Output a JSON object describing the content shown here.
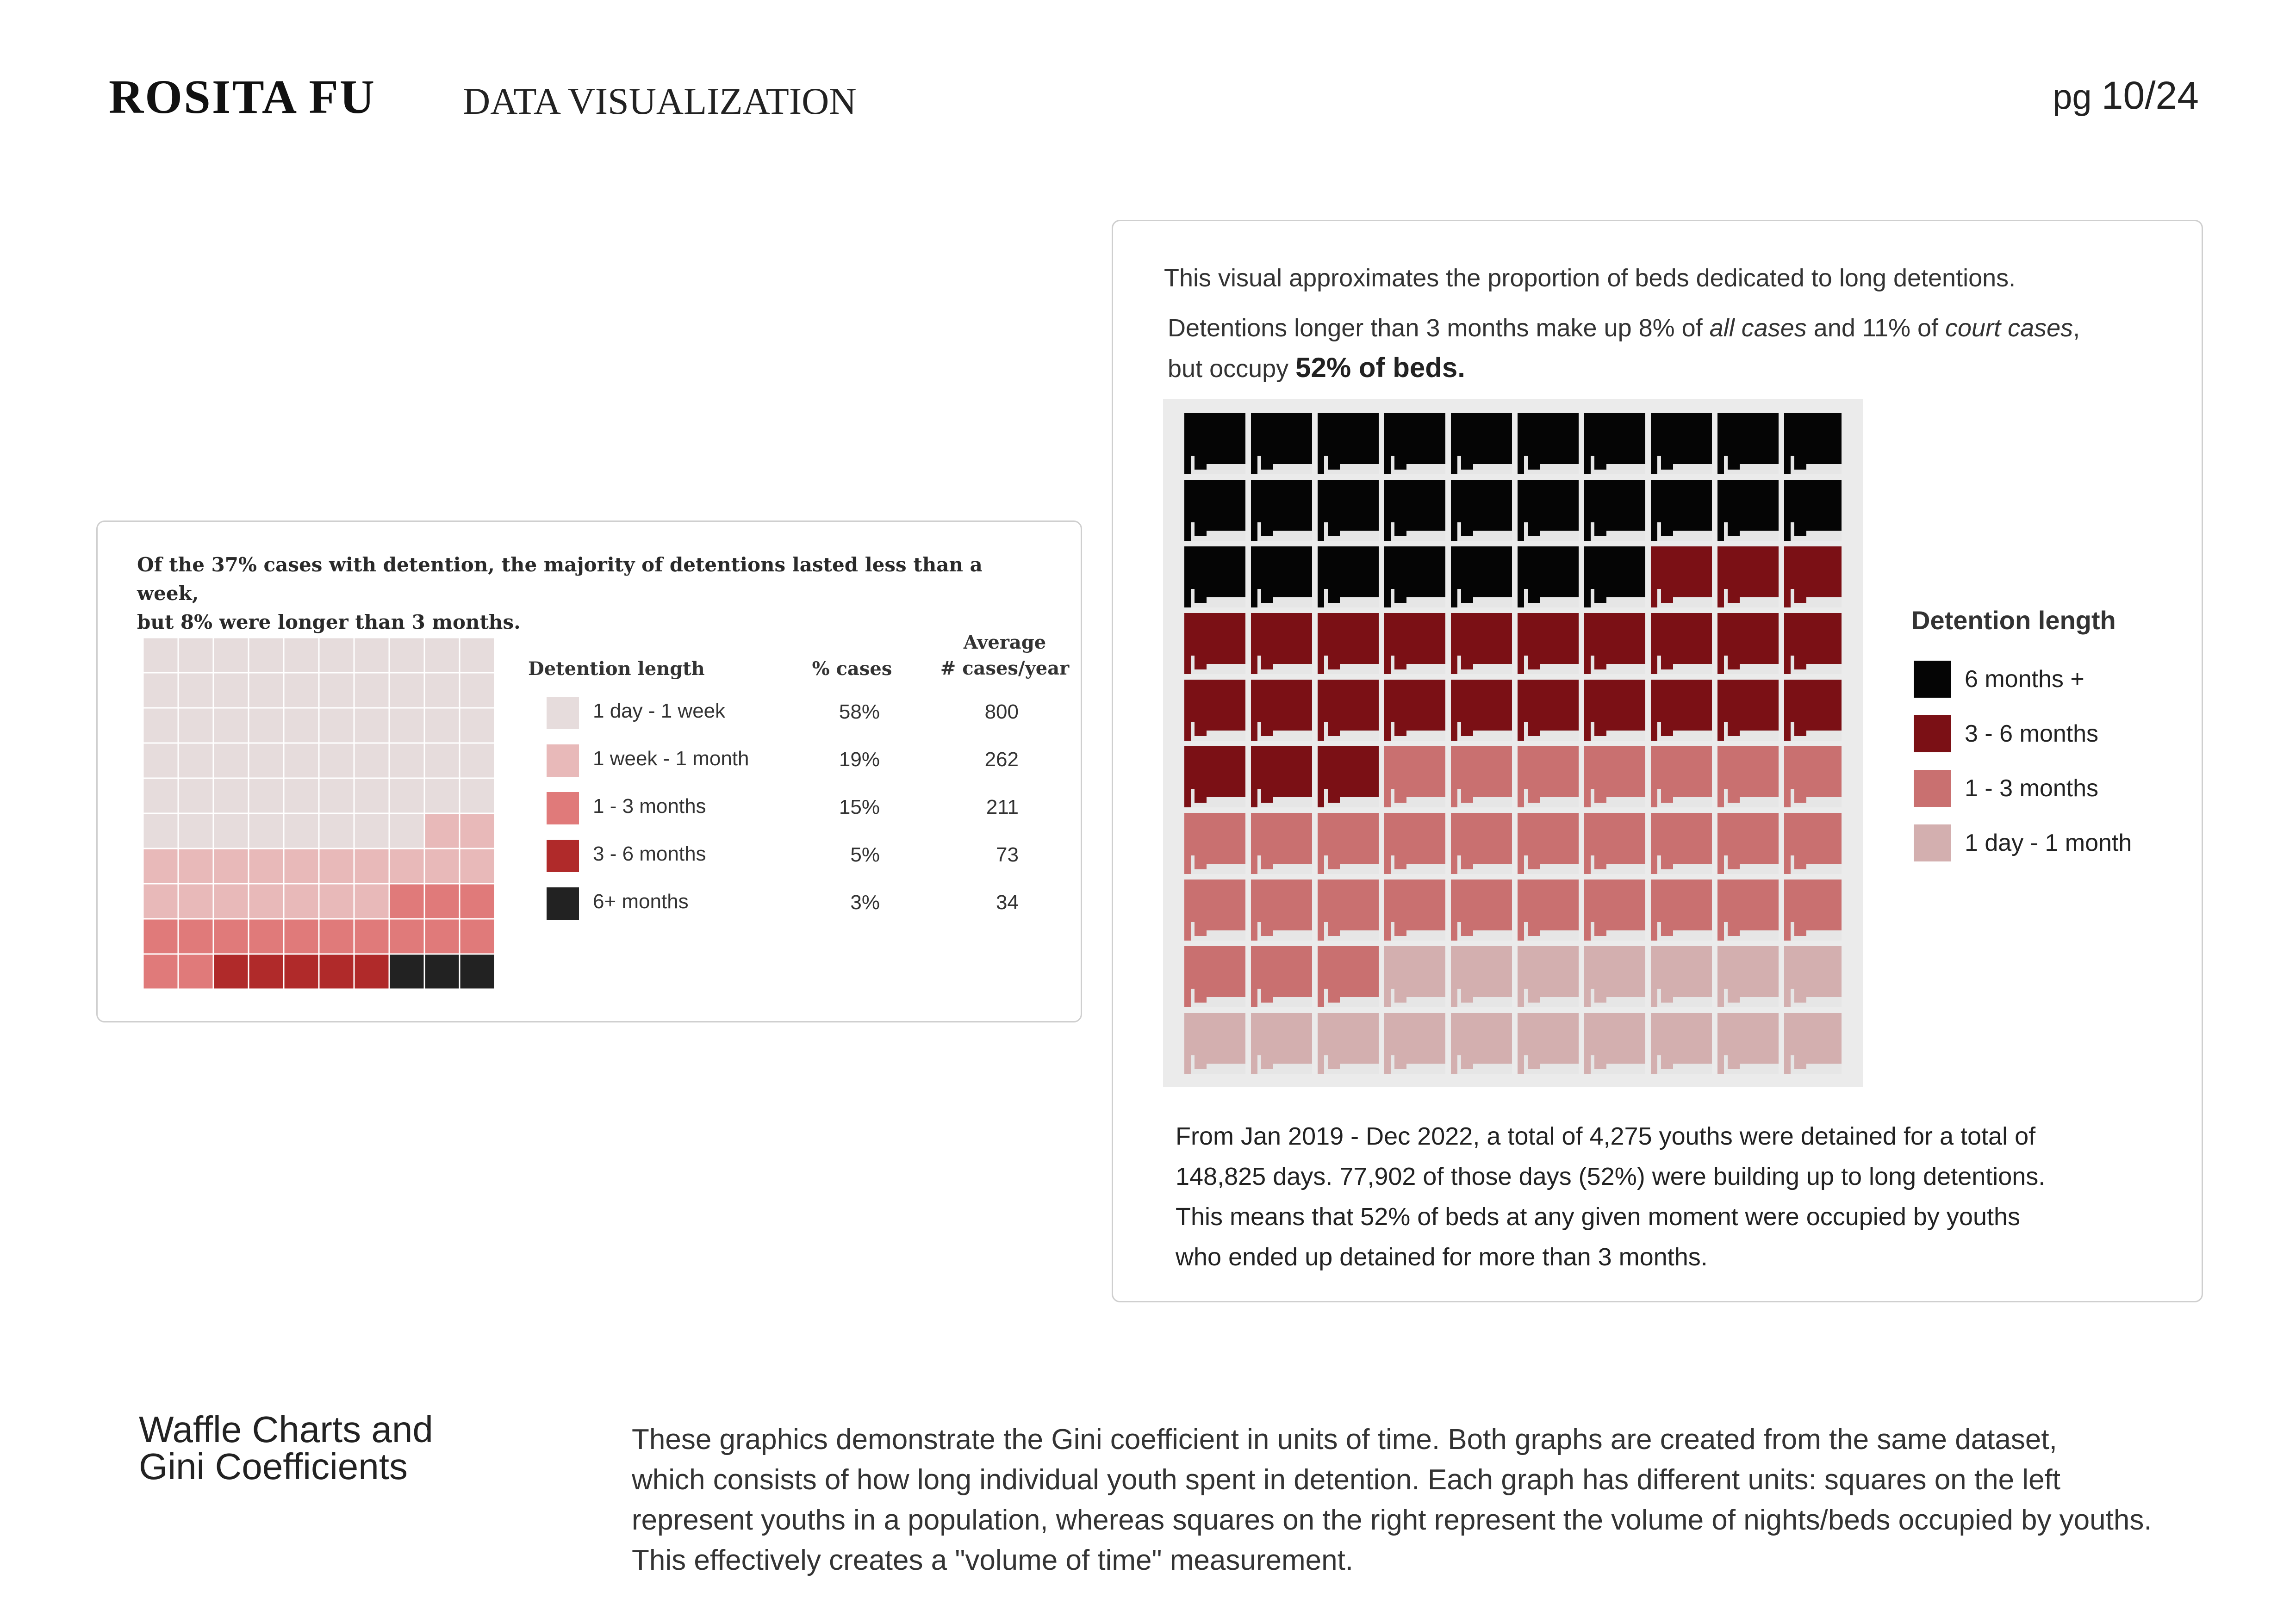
{
  "header": {
    "author": "ROSITA FU",
    "section": "DATA VISUALIZATION",
    "page_prefix": "pg",
    "page_num": "10/24"
  },
  "left_card": {
    "caption_line1": "Of the 37% cases with detention, the majority of detentions lasted less than a week,",
    "caption_line2": "but 8% were longer than 3 months.",
    "headers": {
      "length": "Detention length",
      "pct": "% cases",
      "avg_line1": "Average",
      "avg_line2": "# cases/year"
    }
  },
  "right_card": {
    "line1": "This visual approximates the proportion of beds dedicated to long detentions.",
    "line2_a": "Detentions longer than 3 months make up 8% of ",
    "line2_em1": "all cases",
    "line2_b": " and 11% of ",
    "line2_em2": "court cases",
    "line2_c": ",",
    "line3_a": "but occupy ",
    "line3_bold": "52% of beds.",
    "legend_title": "Detention length",
    "para1": "From Jan 2019 - Dec 2022, a total of 4,275 youths were detained for a total of",
    "para2": "148,825 days. 77,902 of those days (52%) were building up to long detentions.",
    "para3": "This means that 52% of beds at any given moment were occupied by youths",
    "para4": "who ended up detained for more than 3 months."
  },
  "bottom": {
    "title1": "Waffle Charts and",
    "title2": "Gini Coefficients",
    "text1": "These graphics demonstrate the Gini coefficient in units of time. Both graphs are created from the same dataset,",
    "text2": "which consists of how long individual youth spent in detention. Each graph has different units: squares on the left",
    "text3": "represent youths in a population, whereas squares on the right represent the volume of nights/beds occupied by youths.",
    "text4": "This effectively creates a \"volume of time\" measurement."
  },
  "chart_data": [
    {
      "type": "waffle",
      "unit": "cases",
      "grid": [
        10,
        10
      ],
      "categories": [
        "1 day - 1 week",
        "1 week - 1 month",
        "1 - 3 months",
        "3 - 6 months",
        "6+ months"
      ],
      "pct_labels": [
        "58%",
        "19%",
        "15%",
        "5%",
        "3%"
      ],
      "values": [
        58,
        19,
        15,
        5,
        3
      ],
      "avg_cases_per_year": [
        800,
        262,
        211,
        73,
        34
      ],
      "colors": [
        "#e6dcdc",
        "#e8b9b9",
        "#e07a7a",
        "#b02a2a",
        "#222222"
      ]
    },
    {
      "type": "waffle",
      "unit": "beds",
      "grid": [
        10,
        10
      ],
      "categories": [
        "6 months +",
        "3 - 6 months",
        "1 - 3 months",
        "1 day - 1 month"
      ],
      "values": [
        27,
        26,
        30,
        17
      ],
      "colors": [
        "#050505",
        "#7b1015",
        "#c97070",
        "#d3afaf"
      ]
    }
  ]
}
